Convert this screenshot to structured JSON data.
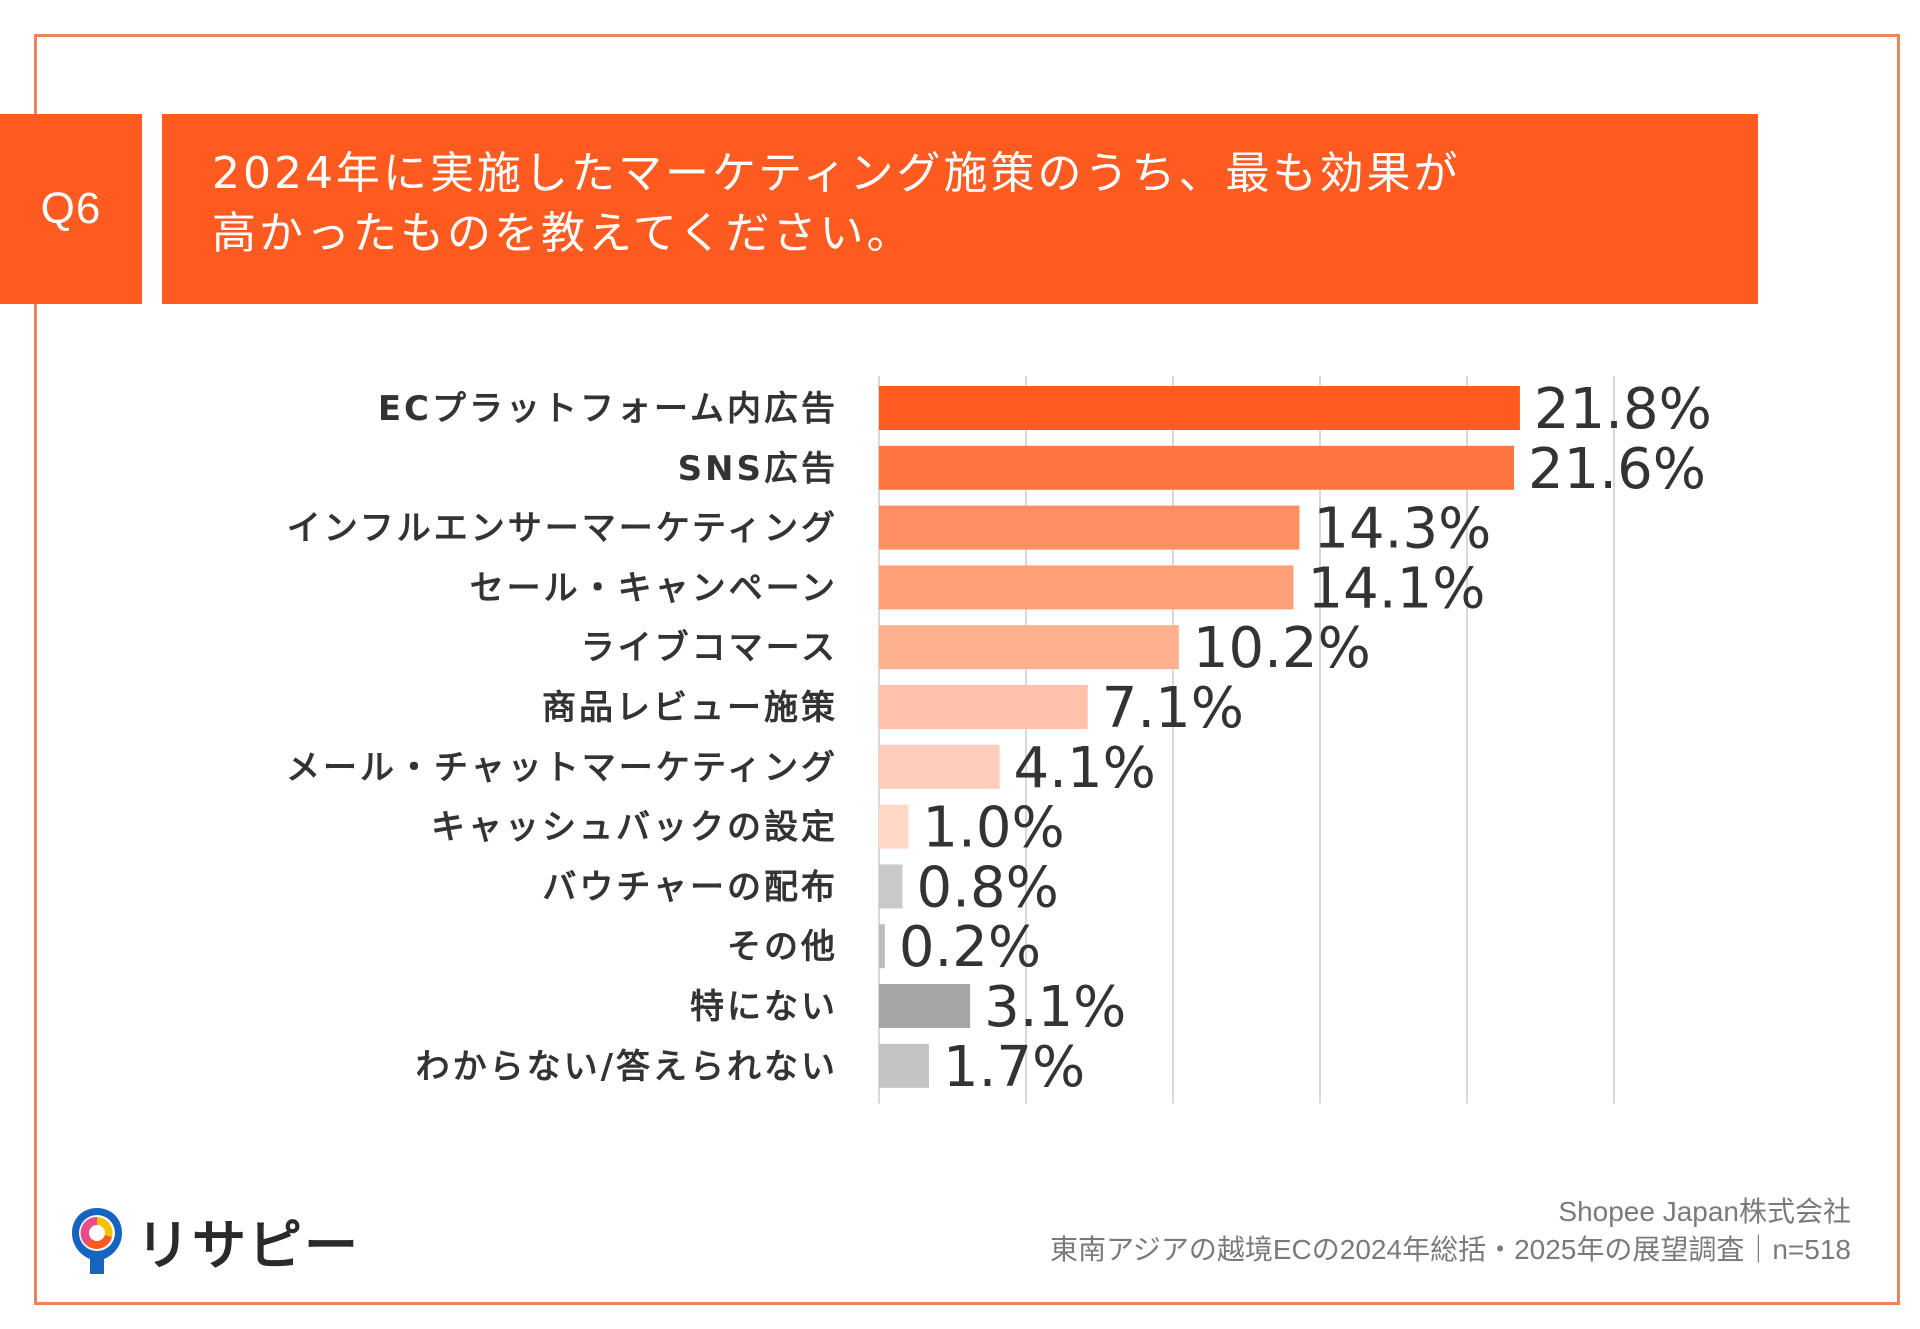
{
  "question": {
    "label": "Q6",
    "text": "2024年に実施したマーケティング施策のうち、最も効果が\n高かったものを教えてください。"
  },
  "chart_data": {
    "type": "bar",
    "orientation": "horizontal",
    "title": "2024年に実施したマーケティング施策のうち、最も効果が高かったものを教えてください。",
    "categories": [
      "ECプラットフォーム内広告",
      "SNS広告",
      "インフルエンサーマーケティング",
      "セール・キャンペーン",
      "ライブコマース",
      "商品レビュー施策",
      "メール・チャットマーケティング",
      "キャッシュバックの設定",
      "バウチャーの配布",
      "その他",
      "特にない",
      "わからない/答えられない"
    ],
    "values": [
      21.8,
      21.6,
      14.3,
      14.1,
      10.2,
      7.1,
      4.1,
      1.0,
      0.8,
      0.2,
      3.1,
      1.7
    ],
    "value_labels": [
      "21.8%",
      "21.6%",
      "14.3%",
      "14.1%",
      "10.2%",
      "7.1%",
      "4.1%",
      "1.0%",
      "0.8%",
      "0.2%",
      "3.1%",
      "1.7%"
    ],
    "colors": [
      "#ff5a1f",
      "#ff7440",
      "#ff8e62",
      "#ff9f78",
      "#ffb08f",
      "#ffc2a8",
      "#ffcebb",
      "#ffd8c8",
      "#c9c9c9",
      "#bdbdbd",
      "#a6a6a6",
      "#c3c3c3"
    ],
    "xlim": [
      0,
      25
    ],
    "grid": true,
    "unit": "%"
  },
  "logo": {
    "text": "リサピー"
  },
  "source": {
    "company": "Shopee Japan株式会社",
    "survey": "東南アジアの越境ECの2024年総括・2025年の展望調査｜n=518"
  }
}
